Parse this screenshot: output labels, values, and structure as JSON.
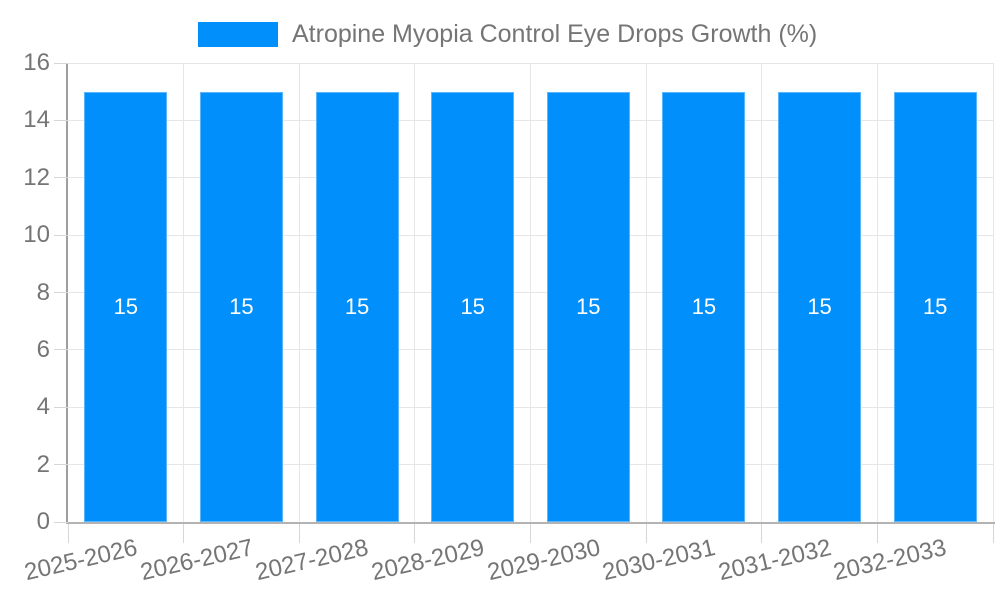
{
  "chart_data": {
    "type": "bar",
    "title": "",
    "categories": [
      "2025-2026",
      "2026-2027",
      "2027-2028",
      "2028-2029",
      "2029-2030",
      "2030-2031",
      "2031-2032",
      "2032-2033"
    ],
    "series": [
      {
        "name": "Atropine Myopia Control Eye Drops Growth (%)",
        "color": "#008FFB",
        "values": [
          15,
          15,
          15,
          15,
          15,
          15,
          15,
          15
        ]
      }
    ],
    "bar_value_labels": [
      "15",
      "15",
      "15",
      "15",
      "15",
      "15",
      "15",
      "15"
    ],
    "xlabel": "",
    "ylabel": "",
    "ylim": [
      0,
      16
    ],
    "yticks": [
      0,
      2,
      4,
      6,
      8,
      10,
      12,
      14,
      16
    ],
    "grid": "on",
    "legend_position": "top"
  },
  "colors": {
    "bar": "#008FFB",
    "bar_label": "#FFFFFF",
    "axis_text": "#757575",
    "grid_line": "#E6E6E6",
    "tick_mark": "#D6D6D6",
    "y_axis_line": "#9E9E9E",
    "x_axis_line": "#B3B3B3",
    "background": "#FFFFFF"
  }
}
